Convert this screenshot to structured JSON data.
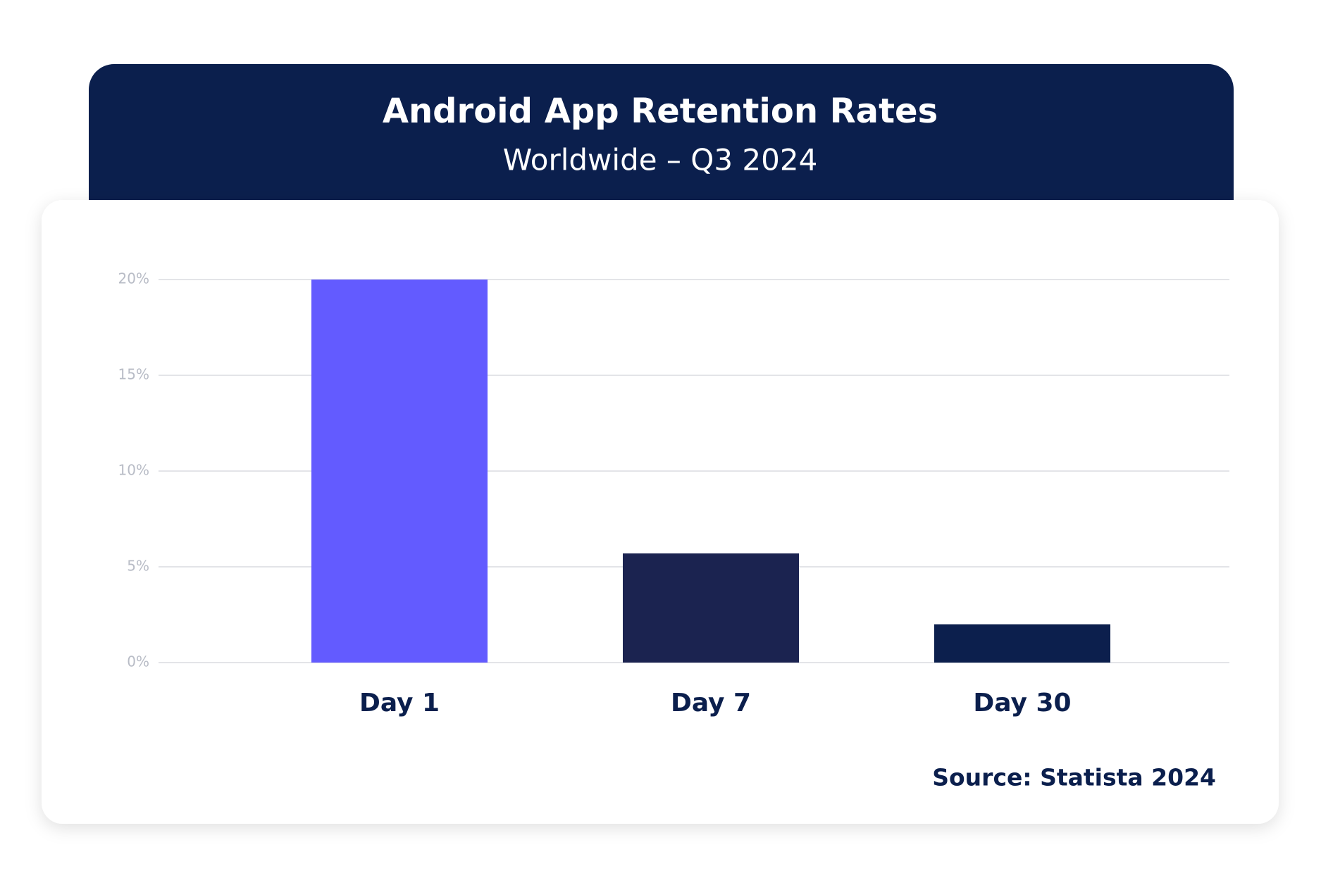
{
  "chart_data": {
    "type": "bar",
    "title": "Android App Retention Rates",
    "subtitle": "Worldwide – Q3 2024",
    "categories": [
      "Day 1",
      "Day 7",
      "Day 30"
    ],
    "values": [
      20,
      5.7,
      2.0
    ],
    "colors": [
      "#635bff",
      "#1b2350",
      "#0c1f4d"
    ],
    "ylim": [
      0,
      20
    ],
    "yticks": [
      {
        "value": 0,
        "label": "0%"
      },
      {
        "value": 5,
        "label": "5%"
      },
      {
        "value": 10,
        "label": "10%"
      },
      {
        "value": 15,
        "label": "15%"
      },
      {
        "value": 20,
        "label": "20%"
      }
    ],
    "grid": true,
    "source": "Source: Statista 2024"
  }
}
